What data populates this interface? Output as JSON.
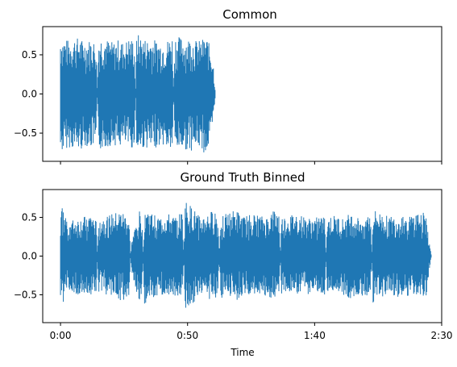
{
  "chart_data": [
    {
      "type": "line",
      "title": "Common",
      "xlabel": "",
      "ylabel": "",
      "xlim": [
        -7,
        150
      ],
      "ylim": [
        -0.86,
        0.86
      ],
      "xticks": [
        0,
        50,
        100,
        150
      ],
      "xtick_labels": [],
      "yticks": [
        -0.5,
        0.0,
        0.5
      ],
      "ytick_labels": [
        "−0.5",
        "0.0",
        "0.5"
      ],
      "color": "#1f77b4",
      "grid": false,
      "x": [
        0,
        2,
        4,
        6,
        8,
        10,
        12,
        14,
        14.5,
        15,
        17,
        19,
        21,
        23,
        25,
        27,
        29,
        29.5,
        30,
        32,
        34,
        36,
        38,
        40,
        42,
        44,
        44.5,
        45,
        47,
        49,
        51,
        53,
        55,
        57,
        58,
        60,
        61
      ],
      "y_upper": [
        0.74,
        0.7,
        0.68,
        0.73,
        0.7,
        0.67,
        0.7,
        0.66,
        0.05,
        0.72,
        0.74,
        0.68,
        0.66,
        0.7,
        0.65,
        0.72,
        0.69,
        0.06,
        0.78,
        0.72,
        0.7,
        0.71,
        0.68,
        0.66,
        0.69,
        0.74,
        0.05,
        0.75,
        0.73,
        0.7,
        0.72,
        0.69,
        0.68,
        0.73,
        0.7,
        0.45,
        0.0
      ],
      "y_lower": [
        -0.76,
        -0.7,
        -0.68,
        -0.72,
        -0.71,
        -0.66,
        -0.69,
        -0.65,
        -0.05,
        -0.72,
        -0.7,
        -0.67,
        -0.65,
        -0.68,
        -0.64,
        -0.69,
        -0.7,
        -0.05,
        -0.75,
        -0.7,
        -0.69,
        -0.73,
        -0.67,
        -0.65,
        -0.7,
        -0.72,
        -0.05,
        -0.72,
        -0.7,
        -0.71,
        -0.73,
        -0.7,
        -0.68,
        -0.78,
        -0.72,
        -0.42,
        0.0
      ]
    },
    {
      "type": "line",
      "title": "Ground Truth Binned",
      "xlabel": "Time",
      "ylabel": "",
      "xlim": [
        -7,
        150
      ],
      "ylim": [
        -0.86,
        0.86
      ],
      "xticks": [
        0,
        50,
        100,
        150
      ],
      "xtick_labels": [
        "0:00",
        "0:50",
        "1:40",
        "2:30"
      ],
      "yticks": [
        -0.5,
        0.0,
        0.5
      ],
      "ytick_labels": [
        "−0.5",
        "0.0",
        "0.5"
      ],
      "color": "#1f77b4",
      "grid": false,
      "x": [
        0,
        3,
        6,
        9,
        12,
        14,
        14.5,
        15,
        18,
        21,
        24,
        27,
        27.5,
        28,
        31,
        32,
        32.5,
        33,
        36,
        39,
        42,
        45,
        48,
        48.5,
        49,
        52,
        55,
        58,
        61,
        62,
        62.5,
        63,
        66,
        69,
        72,
        75,
        78,
        81,
        84,
        86,
        86.5,
        87,
        90,
        93,
        96,
        99,
        102,
        104,
        104.5,
        105,
        108,
        111,
        114,
        117,
        120,
        122,
        122.5,
        123,
        126,
        129,
        132,
        135,
        138,
        141,
        144,
        145,
        146
      ],
      "y_upper": [
        0.68,
        0.45,
        0.48,
        0.5,
        0.55,
        0.45,
        0.05,
        0.5,
        0.52,
        0.55,
        0.58,
        0.5,
        0.03,
        0.2,
        0.58,
        0.55,
        0.03,
        0.65,
        0.55,
        0.5,
        0.55,
        0.5,
        0.58,
        0.03,
        0.72,
        0.62,
        0.5,
        0.55,
        0.6,
        0.45,
        0.03,
        0.58,
        0.55,
        0.6,
        0.5,
        0.55,
        0.52,
        0.5,
        0.6,
        0.55,
        0.03,
        0.5,
        0.52,
        0.55,
        0.5,
        0.48,
        0.52,
        0.5,
        0.03,
        0.5,
        0.52,
        0.48,
        0.55,
        0.5,
        0.52,
        0.55,
        0.03,
        0.6,
        0.55,
        0.52,
        0.5,
        0.55,
        0.52,
        0.58,
        0.55,
        0.2,
        0.0
      ],
      "y_lower": [
        -0.68,
        -0.45,
        -0.5,
        -0.48,
        -0.52,
        -0.45,
        -0.05,
        -0.48,
        -0.5,
        -0.55,
        -0.6,
        -0.5,
        -0.03,
        -0.2,
        -0.62,
        -0.55,
        -0.03,
        -0.68,
        -0.55,
        -0.52,
        -0.5,
        -0.52,
        -0.6,
        -0.03,
        -0.68,
        -0.62,
        -0.5,
        -0.55,
        -0.58,
        -0.45,
        -0.03,
        -0.55,
        -0.5,
        -0.58,
        -0.52,
        -0.55,
        -0.5,
        -0.52,
        -0.62,
        -0.52,
        -0.03,
        -0.5,
        -0.48,
        -0.55,
        -0.5,
        -0.48,
        -0.5,
        -0.5,
        -0.03,
        -0.48,
        -0.5,
        -0.52,
        -0.55,
        -0.5,
        -0.52,
        -0.55,
        -0.03,
        -0.62,
        -0.55,
        -0.5,
        -0.52,
        -0.55,
        -0.5,
        -0.58,
        -0.55,
        -0.2,
        0.0
      ]
    }
  ]
}
